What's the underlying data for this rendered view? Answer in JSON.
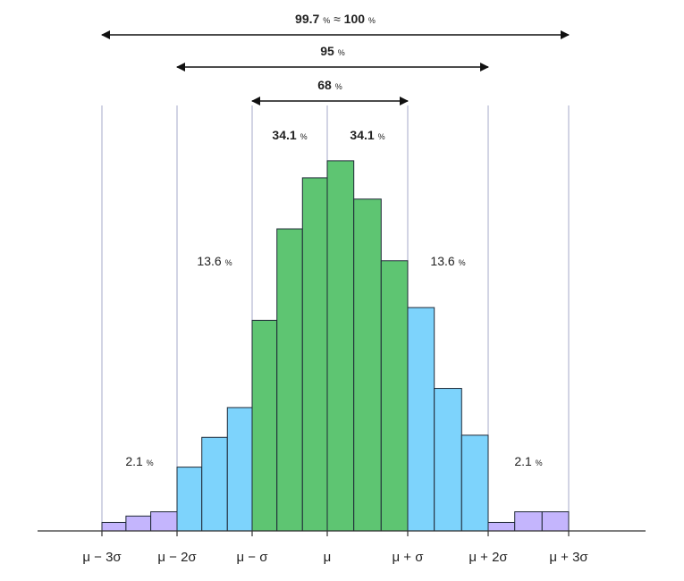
{
  "chart_data": {
    "type": "bar",
    "x_ticks": [
      "μ − 3σ",
      "μ − 2σ",
      "μ − σ",
      "μ",
      "μ + σ",
      "μ + 2σ",
      "μ + 3σ"
    ],
    "sigma_bounds": [
      -3,
      -2,
      -1,
      0,
      1,
      2,
      3
    ],
    "bins": [
      {
        "x0": -3.0,
        "x1": -2.68,
        "value": 0.02,
        "zone": "tail"
      },
      {
        "x0": -2.68,
        "x1": -2.35,
        "value": 0.035,
        "zone": "tail"
      },
      {
        "x0": -2.35,
        "x1": -2.0,
        "value": 0.045,
        "zone": "tail"
      },
      {
        "x0": -2.0,
        "x1": -1.67,
        "value": 0.15,
        "zone": "outer"
      },
      {
        "x0": -1.67,
        "x1": -1.33,
        "value": 0.22,
        "zone": "outer"
      },
      {
        "x0": -1.33,
        "x1": -1.0,
        "value": 0.29,
        "zone": "outer"
      },
      {
        "x0": -1.0,
        "x1": -0.67,
        "value": 0.495,
        "zone": "center"
      },
      {
        "x0": -0.67,
        "x1": -0.33,
        "value": 0.71,
        "zone": "center"
      },
      {
        "x0": -0.33,
        "x1": 0.0,
        "value": 0.83,
        "zone": "center"
      },
      {
        "x0": 0.0,
        "x1": 0.33,
        "value": 0.87,
        "zone": "center"
      },
      {
        "x0": 0.33,
        "x1": 0.67,
        "value": 0.78,
        "zone": "center"
      },
      {
        "x0": 0.67,
        "x1": 1.0,
        "value": 0.635,
        "zone": "center"
      },
      {
        "x0": 1.0,
        "x1": 1.33,
        "value": 0.525,
        "zone": "outer"
      },
      {
        "x0": 1.33,
        "x1": 1.67,
        "value": 0.335,
        "zone": "outer"
      },
      {
        "x0": 1.67,
        "x1": 2.0,
        "value": 0.225,
        "zone": "outer"
      },
      {
        "x0": 2.0,
        "x1": 2.33,
        "value": 0.02,
        "zone": "tail"
      },
      {
        "x0": 2.33,
        "x1": 2.67,
        "value": 0.045,
        "zone": "tail"
      },
      {
        "x0": 2.67,
        "x1": 3.0,
        "value": 0.045,
        "zone": "tail"
      }
    ],
    "ylim": [
      0,
      1
    ],
    "grid": false,
    "colors": {
      "center": "#5ec572",
      "outer": "#7dd3fc",
      "tail": "#c4b5fd",
      "edge": "#1f2937",
      "guide": "#a5a9c9",
      "axis": "#333333"
    },
    "region_labels": [
      {
        "num": "2.1",
        "unit": "%",
        "sigma": -2.5
      },
      {
        "num": "13.6",
        "unit": "%",
        "sigma": -1.5
      },
      {
        "num": "34.1",
        "unit": "%",
        "sigma": -0.5
      },
      {
        "num": "34.1",
        "unit": "%",
        "sigma": 0.5
      },
      {
        "num": "13.6",
        "unit": "%",
        "sigma": 1.5
      },
      {
        "num": "2.1",
        "unit": "%",
        "sigma": 2.5
      }
    ],
    "ranges": [
      {
        "from": -3,
        "to": 3,
        "num": "99.7",
        "unit": "%",
        "approx": "≈",
        "num2": "100",
        "unit2": "%"
      },
      {
        "from": -2,
        "to": 2,
        "num": "95",
        "unit": "%"
      },
      {
        "from": -1,
        "to": 1,
        "num": "68",
        "unit": "%"
      }
    ]
  }
}
